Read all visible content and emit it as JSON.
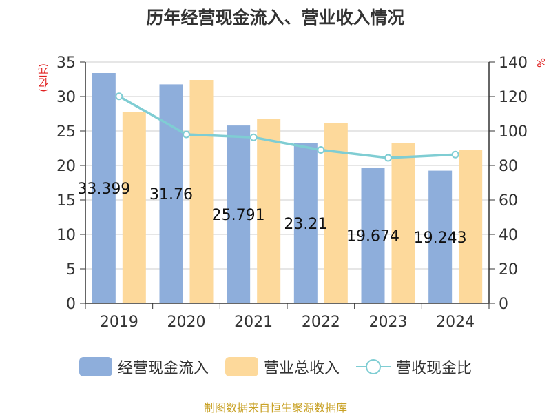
{
  "colors": {
    "cash": "#8eaedb",
    "revenue": "#fdd99b",
    "ratio": "#7fcdd3",
    "unit": "#e02020"
  },
  "chart_data": {
    "type": "bar",
    "title": "历年经营现金流入、营业收入情况",
    "categories": [
      "2019",
      "2020",
      "2021",
      "2022",
      "2023",
      "2024"
    ],
    "y_left": {
      "unit": "(亿元)",
      "ylim": [
        0,
        35
      ],
      "ticks": [
        0,
        5,
        10,
        15,
        20,
        25,
        30,
        35
      ]
    },
    "y_right": {
      "unit": "%",
      "ylim": [
        0,
        140
      ],
      "ticks": [
        0,
        20,
        40,
        60,
        80,
        100,
        120,
        140
      ]
    },
    "series": [
      {
        "name": "经营现金流入",
        "type": "bar",
        "axis": "left",
        "values": [
          33.399,
          31.76,
          25.791,
          23.21,
          19.674,
          19.243
        ],
        "labels": [
          "33.399",
          "31.76",
          "25.791",
          "23.21",
          "19.674",
          "19.243"
        ]
      },
      {
        "name": "营业总收入",
        "type": "bar",
        "axis": "left",
        "values": [
          27.8,
          32.4,
          26.8,
          26.1,
          23.3,
          22.3
        ]
      },
      {
        "name": "营收现金比",
        "type": "line",
        "axis": "right",
        "values": [
          120.1,
          98.0,
          96.3,
          89.0,
          84.4,
          86.3
        ]
      }
    ],
    "grid": true,
    "legend": "bottom"
  },
  "source": "制图数据来自恒生聚源数据库"
}
